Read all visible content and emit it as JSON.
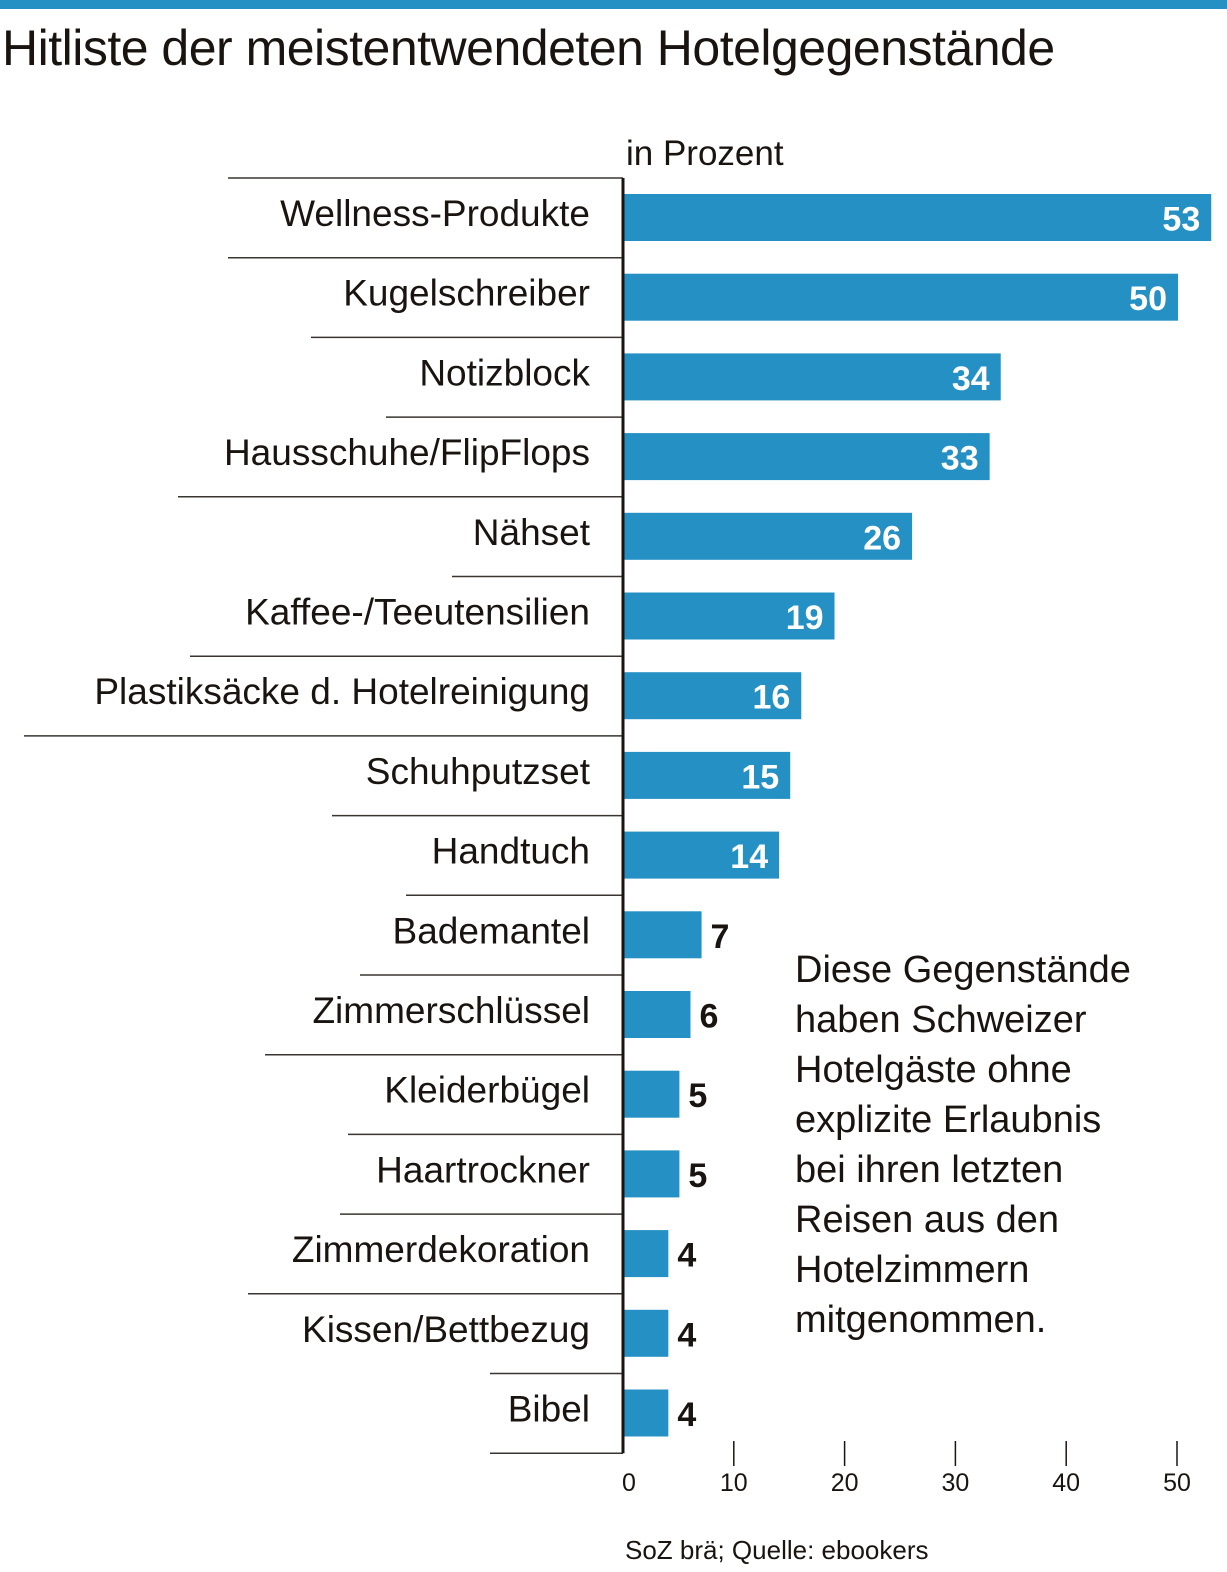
{
  "title": "Hitliste der meistentwendeten Hotelgegenstände",
  "unit_label": "in Prozent",
  "note_lines": [
    "Diese Gegenstände",
    "haben Schweizer",
    "Hotelgäste ohne",
    "explizite Erlaubnis",
    "bei ihren letzten",
    "Reisen aus den",
    "Hotelzimmern",
    "mitgenommen."
  ],
  "source": "SoZ brä; Quelle: ebookers",
  "colors": {
    "bar": "#2590c3",
    "topbar": "#2590c3",
    "text": "#1a1410",
    "label_inside": "#ffffff"
  },
  "chart_data": {
    "type": "bar",
    "orientation": "horizontal",
    "title": "Hitliste der meistentwendeten Hotelgegenstände",
    "xlabel": "in Prozent",
    "ylabel": "",
    "xlim": [
      0,
      53
    ],
    "x_ticks": [
      0,
      10,
      20,
      30,
      40,
      50
    ],
    "grid": false,
    "categories": [
      "Wellness-Produkte",
      "Kugelschreiber",
      "Notizblock",
      "Hausschuhe/FlipFlops",
      "Nähset",
      "Kaffee-/Teeutensilien",
      "Plastiksäcke d. Hotelreinigung",
      "Schuhputzset",
      "Handtuch",
      "Bademantel",
      "Zimmerschlüssel",
      "Kleiderbügel",
      "Haartrockner",
      "Zimmerdekoration",
      "Kissen/Bettbezug",
      "Bibel"
    ],
    "values": [
      53,
      50,
      34,
      33,
      26,
      19,
      16,
      15,
      14,
      7,
      6,
      5,
      5,
      4,
      4,
      4
    ]
  }
}
